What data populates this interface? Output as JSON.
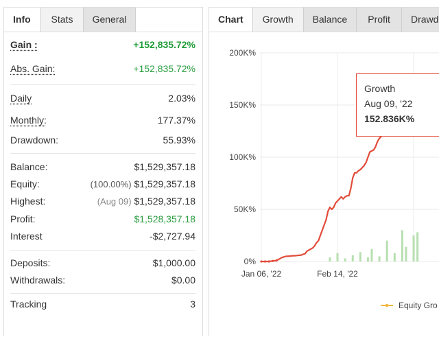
{
  "left_tabs": [
    "Info",
    "Stats",
    "General"
  ],
  "right_tabs": [
    "Chart",
    "Growth",
    "Balance",
    "Profit",
    "Drawd"
  ],
  "stats": {
    "gain": {
      "label": "Gain :",
      "value": "+152,835.72%"
    },
    "abs_gain": {
      "label": "Abs. Gain:",
      "value": "+152,835.72%"
    },
    "daily": {
      "label": "Daily",
      "value": "2.03%"
    },
    "monthly": {
      "label": "Monthly:",
      "value": "177.37%"
    },
    "drawdown": {
      "label": "Drawdown:",
      "value": "55.93%"
    },
    "balance": {
      "label": "Balance:",
      "value": "$1,529,357.18"
    },
    "equity": {
      "label": "Equity:",
      "note": "(100.00%)",
      "value": "$1,529,357.18"
    },
    "highest": {
      "label": "Highest:",
      "note": "(Aug 09)",
      "value": "$1,529,357.18"
    },
    "profit": {
      "label": "Profit:",
      "value": "$1,528,357.18"
    },
    "interest": {
      "label": "Interest",
      "value": "-$2,727.94"
    },
    "deposits": {
      "label": "Deposits:",
      "value": "$1,000.00"
    },
    "withdrawals": {
      "label": "Withdrawals:",
      "value": "$0.00"
    },
    "tracking": {
      "label": "Tracking",
      "value": "3"
    }
  },
  "tooltip": {
    "series": "Growth",
    "date": "Aug 09, '22",
    "value": "152.836K%"
  },
  "legend": {
    "label": "Equity Gro"
  },
  "colors": {
    "growth_line": "#e34b39",
    "bars": "#b7dfb0",
    "gain_green": "#1f9c38"
  },
  "chart_data": {
    "type": "line",
    "ylim": [
      0,
      200000
    ],
    "y_ticks": [
      "200K%",
      "150K%",
      "100K%",
      "50K%",
      "0%"
    ],
    "x_ticks": [
      "Jan 06, '22",
      "Feb 14, '22"
    ],
    "series": [
      {
        "name": "Growth",
        "x": [
          0,
          2,
          4,
          6,
          8,
          9,
          10,
          11,
          12,
          13,
          14,
          15,
          16,
          17,
          18,
          19,
          20,
          21,
          22,
          23,
          24,
          25,
          26,
          27,
          28,
          29,
          30,
          31,
          32,
          33,
          34,
          35,
          36,
          37,
          38,
          39,
          40,
          41,
          42,
          43,
          44,
          45,
          46,
          47,
          48,
          49,
          50,
          51,
          52,
          53,
          54,
          55,
          56,
          57,
          58,
          59,
          60,
          61,
          62,
          63,
          64,
          65,
          66,
          67,
          68,
          69,
          70,
          71,
          72,
          73,
          74,
          75,
          76,
          77,
          78,
          79,
          80,
          81,
          82
        ],
        "values": [
          0,
          0,
          0,
          500,
          1000,
          2000,
          3000,
          4000,
          4500,
          5000,
          5000,
          5200,
          5400,
          5500,
          5600,
          5800,
          6000,
          6200,
          7000,
          7500,
          10000,
          11000,
          12000,
          13000,
          15000,
          18000,
          20000,
          25000,
          30000,
          35000,
          40000,
          48000,
          52000,
          50000,
          52000,
          56000,
          58000,
          60000,
          62000,
          60000,
          62000,
          63000,
          63000,
          70000,
          80000,
          85000,
          85000,
          87000,
          88000,
          90000,
          92000,
          95000,
          100000,
          105000,
          106000,
          107000,
          110000,
          115000,
          118000,
          120000,
          125000,
          128000,
          130000,
          132000,
          135000,
          138000,
          142000,
          145000,
          148000,
          150000,
          151000,
          152000,
          152836,
          152836,
          152836,
          152836,
          152836,
          152836,
          152836
        ]
      },
      {
        "name": "Equity Gro",
        "x": [
          36,
          40,
          44,
          48,
          52,
          56,
          58,
          62,
          66,
          70,
          74,
          76,
          80,
          82
        ],
        "values": [
          4000,
          8000,
          3000,
          6000,
          9000,
          4000,
          12000,
          5000,
          20000,
          8000,
          30000,
          14000,
          25000,
          28000
        ]
      }
    ]
  }
}
